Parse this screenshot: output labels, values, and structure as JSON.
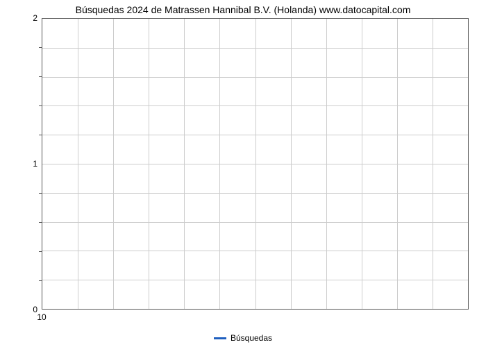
{
  "chart": {
    "type": "line",
    "title": "Búsquedas 2024 de Matrassen Hannibal B.V. (Holanda) www.datocapital.com",
    "title_fontsize": 14,
    "title_color": "#000000",
    "background_color": "#ffffff",
    "plot_border_color": "#555555",
    "grid_color": "#cccccc",
    "axis_label_fontsize": 12,
    "axis_label_color": "#000000",
    "x_axis": {
      "tick_labels": [
        "10"
      ],
      "tick_positions_pct": [
        0
      ],
      "vertical_gridlines_pct": [
        0,
        8.33,
        16.67,
        25,
        33.33,
        41.67,
        50,
        58.33,
        66.67,
        75,
        83.33,
        91.67,
        100
      ]
    },
    "y_axis": {
      "ylim": [
        0,
        2
      ],
      "major_ticks": [
        0,
        1,
        2
      ],
      "major_tick_positions_pct": [
        100,
        50,
        0
      ],
      "minor_tick_positions_pct": [
        10,
        20,
        30,
        40,
        60,
        70,
        80,
        90
      ],
      "horizontal_gridlines_pct": [
        0,
        10,
        20,
        30,
        40,
        50,
        60,
        70,
        80,
        90,
        100
      ]
    },
    "series": [
      {
        "name": "Búsquedas",
        "color": "#1f5fbf",
        "data": []
      }
    ],
    "legend": {
      "position": "bottom",
      "label": "Búsquedas",
      "swatch_color": "#1f5fbf"
    }
  }
}
